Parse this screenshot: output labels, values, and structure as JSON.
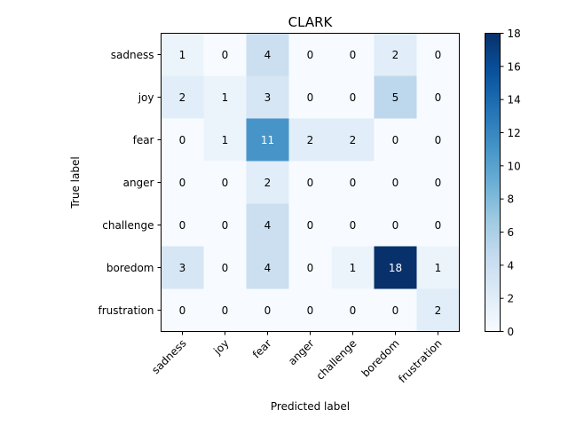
{
  "chart_data": {
    "type": "heatmap",
    "title": "CLARK",
    "xlabel": "Predicted label",
    "ylabel": "True label",
    "x_categories": [
      "sadness",
      "joy",
      "fear",
      "anger",
      "challenge",
      "boredom",
      "frustration"
    ],
    "y_categories": [
      "sadness",
      "joy",
      "fear",
      "anger",
      "challenge",
      "boredom",
      "frustration"
    ],
    "values": [
      [
        1,
        0,
        4,
        0,
        0,
        2,
        0
      ],
      [
        2,
        1,
        3,
        0,
        0,
        5,
        0
      ],
      [
        0,
        1,
        11,
        2,
        2,
        0,
        0
      ],
      [
        0,
        0,
        2,
        0,
        0,
        0,
        0
      ],
      [
        0,
        0,
        4,
        0,
        0,
        0,
        0
      ],
      [
        3,
        0,
        4,
        0,
        1,
        18,
        1
      ],
      [
        0,
        0,
        0,
        0,
        0,
        0,
        2
      ]
    ],
    "colormap": "Blues",
    "value_range": [
      0,
      18
    ],
    "colorbar_ticks": [
      0,
      2,
      4,
      6,
      8,
      10,
      12,
      14,
      16,
      18
    ],
    "x_tick_rotation_deg": 45,
    "grid": false
  }
}
